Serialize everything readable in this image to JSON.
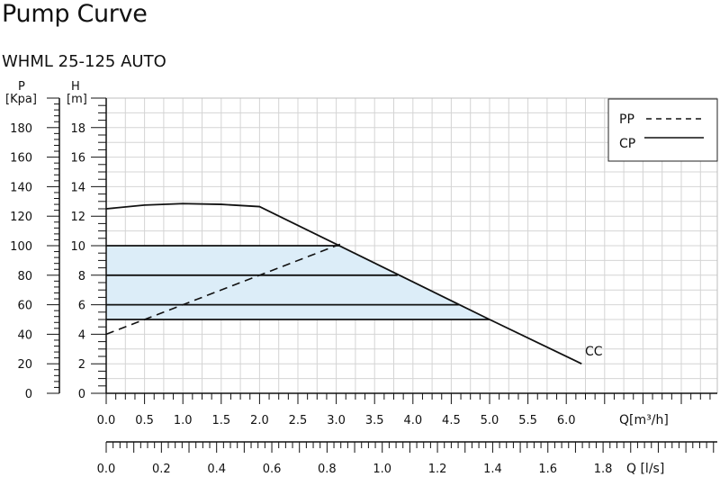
{
  "title": "Pump Curve",
  "subtitle": "WHML 25-125 AUTO",
  "chart_data": {
    "type": "line",
    "p_axis": {
      "symbol": "P",
      "unit": "[Kpa]",
      "ticks": [
        0,
        20,
        40,
        60,
        80,
        100,
        120,
        140,
        160,
        180
      ]
    },
    "h_axis": {
      "symbol": "H",
      "unit": "[m]",
      "ticks": [
        0,
        2,
        4,
        6,
        8,
        10,
        12,
        14,
        16,
        18
      ],
      "ylim": [
        0,
        20
      ]
    },
    "q_axis_m3h": {
      "label": "Q[m³/h]",
      "ticks": [
        "0.0",
        "0.5",
        "1.0",
        "1.5",
        "2.0",
        "2.5",
        "3.0",
        "3.5",
        "4.0",
        "4.5",
        "5.0",
        "5.5",
        "6.0"
      ],
      "xlim": [
        0,
        6.5
      ]
    },
    "q_axis_ls": {
      "label": "Q [l/s]",
      "ticks": [
        "0.0",
        "0.2",
        "0.4",
        "0.6",
        "0.8",
        "1.0",
        "1.2",
        "1.4",
        "1.6",
        "1.8"
      ]
    },
    "legend": {
      "placement": "top-right",
      "entries": [
        {
          "label": "PP",
          "style": "dashed"
        },
        {
          "label": "CP",
          "style": "solid"
        }
      ]
    },
    "curve_label": "CC",
    "grid": true,
    "series": [
      {
        "id": "max-curve",
        "style": "solid",
        "points": [
          [
            0,
            12.5
          ],
          [
            0.5,
            12.75
          ],
          [
            1.0,
            12.85
          ],
          [
            1.5,
            12.8
          ],
          [
            2.0,
            12.65
          ],
          [
            3.0,
            10.1
          ],
          [
            4.0,
            7.55
          ],
          [
            5.0,
            5.0
          ],
          [
            6.2,
            2.0
          ]
        ]
      },
      {
        "id": "PP",
        "style": "dashed",
        "points": [
          [
            0,
            4.0
          ],
          [
            3.05,
            10.1
          ]
        ]
      },
      {
        "id": "CP",
        "style": "solid",
        "constant_heads": [
          {
            "h": 10.0,
            "q_max": 3.05
          },
          {
            "h": 8.0,
            "q_max": 3.8
          },
          {
            "h": 6.0,
            "q_max": 4.6
          },
          {
            "h": 5.0,
            "q_max": 5.0
          }
        ]
      }
    ],
    "shaded_region": {
      "color": "#dcedf8",
      "points": [
        [
          0,
          10.0
        ],
        [
          3.05,
          10.0
        ],
        [
          5.0,
          5.0
        ],
        [
          0,
          5.0
        ]
      ]
    }
  }
}
